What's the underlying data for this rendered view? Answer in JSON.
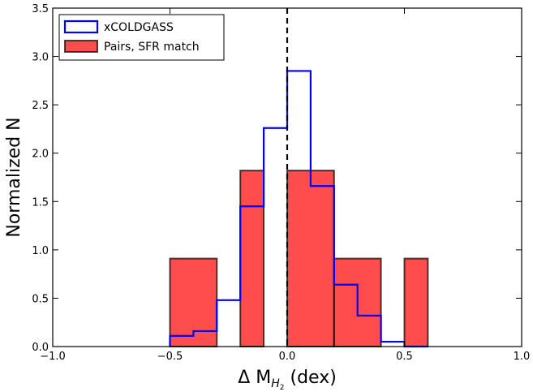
{
  "chart_data": {
    "type": "histogram",
    "bin_edges": [
      -0.5,
      -0.4,
      -0.3,
      -0.2,
      -0.1,
      0.0,
      0.1,
      0.2,
      0.3,
      0.4,
      0.5,
      0.6
    ],
    "series": [
      {
        "name": "xCOLDGASS",
        "style": "step",
        "color": "#0000ff",
        "values": [
          0.11,
          0.16,
          0.48,
          1.45,
          2.26,
          2.85,
          1.66,
          0.64,
          0.32,
          0.05,
          0.0
        ]
      },
      {
        "name": "Pairs, SFR match",
        "style": "bar",
        "color": "#ff0000",
        "alpha": 0.7,
        "segments": [
          {
            "x0": -0.5,
            "x1": -0.3,
            "value": 0.91
          },
          {
            "x0": -0.2,
            "x1": -0.1,
            "value": 1.82
          },
          {
            "x0": 0.0,
            "x1": 0.2,
            "value": 1.82
          },
          {
            "x0": 0.2,
            "x1": 0.4,
            "value": 0.91
          },
          {
            "x0": 0.5,
            "x1": 0.6,
            "value": 0.91
          }
        ]
      }
    ],
    "xlim": [
      -1.0,
      1.0
    ],
    "ylim": [
      0.0,
      3.5
    ],
    "xticks": [
      "−1.0",
      "−0.5",
      "0.0",
      "0.5",
      "1.0"
    ],
    "xtick_values": [
      -1.0,
      -0.5,
      0.0,
      0.5,
      1.0
    ],
    "yticks": [
      "0.0",
      "0.5",
      "1.0",
      "1.5",
      "2.0",
      "2.5",
      "3.0",
      "3.5"
    ],
    "ytick_values": [
      0.0,
      0.5,
      1.0,
      1.5,
      2.0,
      2.5,
      3.0,
      3.5
    ],
    "xlabel": {
      "prefix": "Δ  M",
      "subscript": "H",
      "subsubscript": "2",
      "suffix": " (dex)"
    },
    "ylabel": "Normalized N",
    "vline": {
      "x": 0.0,
      "style": "dashed",
      "color": "#000000"
    },
    "legend": {
      "position": "upper-left",
      "entries": [
        {
          "label": "xCOLDGASS",
          "series": 0
        },
        {
          "label": "Pairs, SFR match",
          "series": 1
        }
      ]
    },
    "grid": false
  }
}
